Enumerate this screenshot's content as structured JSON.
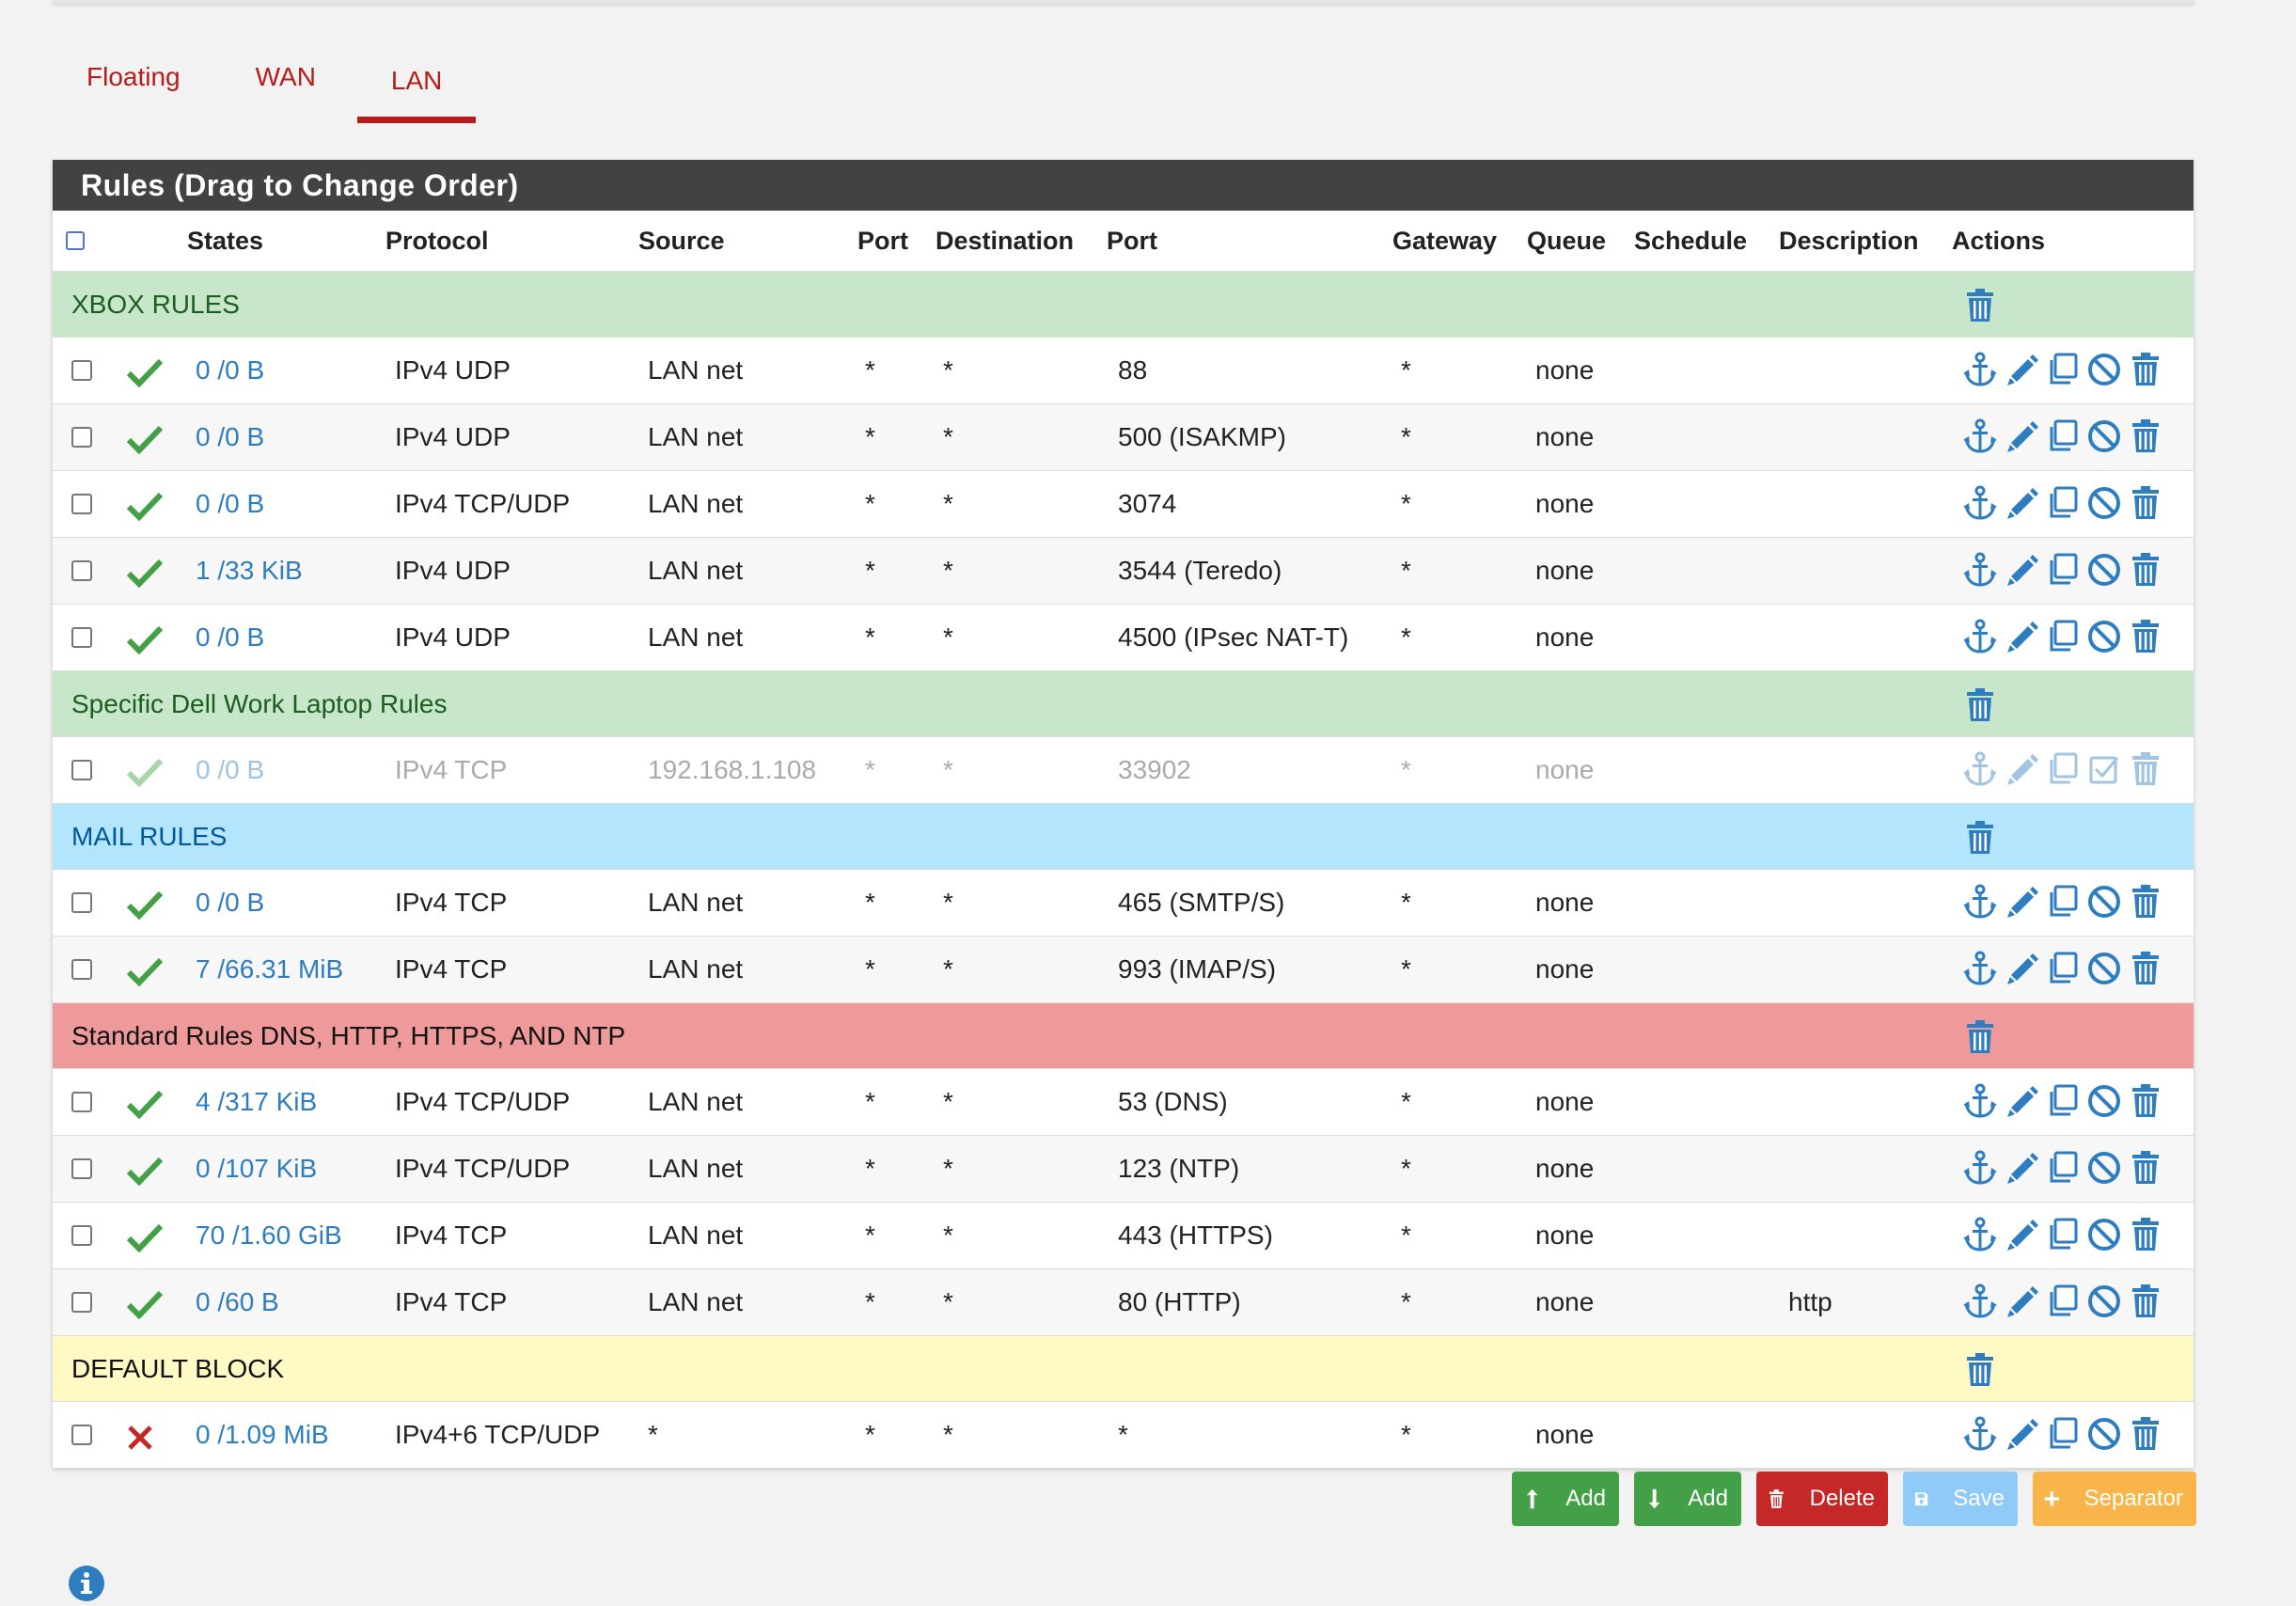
{
  "tabs": [
    {
      "label": "Floating",
      "active": false
    },
    {
      "label": "WAN",
      "active": false
    },
    {
      "label": "LAN",
      "active": true
    }
  ],
  "panel": {
    "title": "Rules (Drag to Change Order)"
  },
  "headers": {
    "states": "States",
    "protocol": "Protocol",
    "source": "Source",
    "port": "Port",
    "destination": "Destination",
    "dport": "Port",
    "gateway": "Gateway",
    "queue": "Queue",
    "schedule": "Schedule",
    "description": "Description",
    "actions": "Actions"
  },
  "sections": [
    {
      "label": "XBOX RULES",
      "color": "#c8e6c9",
      "rules": [
        {
          "status": "pass",
          "states": "0 /0 B",
          "protocol": "IPv4 UDP",
          "source": "LAN net",
          "port": "*",
          "destination": "*",
          "dport": "88",
          "gateway": "*",
          "queue": "none",
          "schedule": "",
          "description": ""
        },
        {
          "status": "pass",
          "states": "0 /0 B",
          "protocol": "IPv4 UDP",
          "source": "LAN net",
          "port": "*",
          "destination": "*",
          "dport": "500 (ISAKMP)",
          "gateway": "*",
          "queue": "none",
          "schedule": "",
          "description": ""
        },
        {
          "status": "pass",
          "states": "0 /0 B",
          "protocol": "IPv4 TCP/UDP",
          "source": "LAN net",
          "port": "*",
          "destination": "*",
          "dport": "3074",
          "gateway": "*",
          "queue": "none",
          "schedule": "",
          "description": ""
        },
        {
          "status": "pass",
          "states": "1 /33 KiB",
          "protocol": "IPv4 UDP",
          "source": "LAN net",
          "port": "*",
          "destination": "*",
          "dport": "3544 (Teredo)",
          "gateway": "*",
          "queue": "none",
          "schedule": "",
          "description": ""
        },
        {
          "status": "pass",
          "states": "0 /0 B",
          "protocol": "IPv4 UDP",
          "source": "LAN net",
          "port": "*",
          "destination": "*",
          "dport": "4500 (IPsec NAT-T)",
          "gateway": "*",
          "queue": "none",
          "schedule": "",
          "description": ""
        }
      ]
    },
    {
      "label": "Specific Dell Work Laptop Rules",
      "color": "#c8e6c9",
      "rules": [
        {
          "status": "disabled",
          "states": "0 /0 B",
          "protocol": "IPv4 TCP",
          "source": "192.168.1.108",
          "port": "*",
          "destination": "*",
          "dport": "33902",
          "gateway": "*",
          "queue": "none",
          "schedule": "",
          "description": ""
        }
      ]
    },
    {
      "label": "MAIL RULES",
      "color": "#b3e5fc",
      "rules": [
        {
          "status": "pass",
          "states": "0 /0 B",
          "protocol": "IPv4 TCP",
          "source": "LAN net",
          "port": "*",
          "destination": "*",
          "dport": "465 (SMTP/S)",
          "gateway": "*",
          "queue": "none",
          "schedule": "",
          "description": ""
        },
        {
          "status": "pass",
          "states": "7 /66.31 MiB",
          "protocol": "IPv4 TCP",
          "source": "LAN net",
          "port": "*",
          "destination": "*",
          "dport": "993 (IMAP/S)",
          "gateway": "*",
          "queue": "none",
          "schedule": "",
          "description": ""
        }
      ]
    },
    {
      "label": "Standard Rules DNS, HTTP, HTTPS, AND NTP",
      "color": "#ef9a9a",
      "rules": [
        {
          "status": "pass",
          "states": "4 /317 KiB",
          "protocol": "IPv4 TCP/UDP",
          "source": "LAN net",
          "port": "*",
          "destination": "*",
          "dport": "53 (DNS)",
          "gateway": "*",
          "queue": "none",
          "schedule": "",
          "description": ""
        },
        {
          "status": "pass",
          "states": "0 /107 KiB",
          "protocol": "IPv4 TCP/UDP",
          "source": "LAN net",
          "port": "*",
          "destination": "*",
          "dport": "123 (NTP)",
          "gateway": "*",
          "queue": "none",
          "schedule": "",
          "description": ""
        },
        {
          "status": "pass",
          "states": "70 /1.60 GiB",
          "protocol": "IPv4 TCP",
          "source": "LAN net",
          "port": "*",
          "destination": "*",
          "dport": "443 (HTTPS)",
          "gateway": "*",
          "queue": "none",
          "schedule": "",
          "description": ""
        },
        {
          "status": "pass",
          "states": "0 /60 B",
          "protocol": "IPv4 TCP",
          "source": "LAN net",
          "port": "*",
          "destination": "*",
          "dport": "80 (HTTP)",
          "gateway": "*",
          "queue": "none",
          "schedule": "",
          "description": "http"
        }
      ]
    },
    {
      "label": "DEFAULT BLOCK",
      "color": "#fff9c4",
      "rules": [
        {
          "status": "block",
          "states": "0 /1.09 MiB",
          "protocol": "IPv4+6 TCP/UDP",
          "source": "*",
          "port": "*",
          "destination": "*",
          "dport": "*",
          "gateway": "*",
          "queue": "none",
          "schedule": "",
          "description": ""
        }
      ]
    }
  ],
  "buttons": {
    "add_top": "Add",
    "add_bottom": "Add",
    "delete": "Delete",
    "save": "Save",
    "separator": "Separator"
  },
  "colors": {
    "accent": "#b71c1c",
    "link": "#2f7dc1",
    "pass": "#43a047",
    "block": "#c62828",
    "panel_header": "#424242"
  },
  "icons": {
    "pass": "check-icon",
    "block": "x-icon",
    "actions": [
      "anchor-icon",
      "pencil-icon",
      "copy-icon",
      "disable-icon",
      "trash-icon"
    ],
    "info": "info-icon"
  }
}
